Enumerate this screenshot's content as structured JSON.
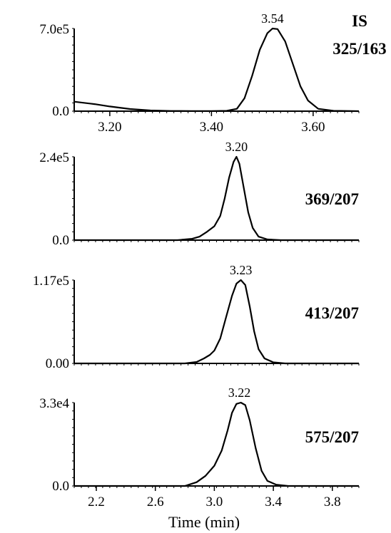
{
  "x_axis_label": "Time (min)",
  "chart_data": [
    {
      "type": "line",
      "trace_label": [
        "IS",
        "325/163"
      ],
      "y_ticks": [
        "7.0e5",
        "0.0"
      ],
      "ylim": [
        0,
        700000
      ],
      "xlim": [
        3.13,
        3.69
      ],
      "x_ticks": [
        3.2,
        3.4,
        3.6
      ],
      "x_tick_labels": [
        "3.20",
        "3.40",
        "3.60"
      ],
      "peak_label": "3.54",
      "peak_x": 3.52,
      "series": [
        {
          "x": [
            3.13,
            3.17,
            3.2,
            3.24,
            3.28,
            3.32,
            3.36,
            3.4,
            3.43,
            3.45,
            3.465,
            3.48,
            3.495,
            3.51,
            3.52,
            3.53,
            3.545,
            3.56,
            3.575,
            3.59,
            3.61,
            3.64,
            3.69
          ],
          "y": [
            80000,
            60000,
            40000,
            18000,
            6000,
            2000,
            1000,
            1000,
            3000,
            20000,
            110000,
            300000,
            520000,
            660000,
            700000,
            695000,
            590000,
            400000,
            210000,
            90000,
            20000,
            3000,
            0
          ]
        }
      ]
    },
    {
      "type": "line",
      "trace_label": [
        "369/207"
      ],
      "y_ticks": [
        "2.4e5",
        "0.0"
      ],
      "ylim": [
        0,
        240000
      ],
      "xlim": [
        2.05,
        3.98
      ],
      "x_ticks": [],
      "x_tick_labels": [],
      "peak_label": "3.20",
      "peak_x": 3.15,
      "series": [
        {
          "x": [
            2.05,
            2.75,
            2.85,
            2.9,
            2.95,
            3.0,
            3.04,
            3.07,
            3.1,
            3.13,
            3.15,
            3.17,
            3.2,
            3.23,
            3.26,
            3.3,
            3.36,
            3.45,
            3.98
          ],
          "y": [
            0,
            0,
            4000,
            10000,
            24000,
            40000,
            70000,
            120000,
            180000,
            225000,
            240000,
            220000,
            150000,
            80000,
            35000,
            10000,
            2000,
            0,
            0
          ]
        }
      ]
    },
    {
      "type": "line",
      "trace_label": [
        "413/207"
      ],
      "y_ticks": [
        "1.17e5",
        "0.00"
      ],
      "ylim": [
        0,
        117000
      ],
      "xlim": [
        2.05,
        3.98
      ],
      "x_ticks": [],
      "x_tick_labels": [],
      "peak_label": "3.23",
      "peak_x": 3.18,
      "series": [
        {
          "x": [
            2.05,
            2.8,
            2.88,
            2.93,
            2.97,
            3.0,
            3.04,
            3.08,
            3.12,
            3.15,
            3.18,
            3.21,
            3.24,
            3.27,
            3.3,
            3.34,
            3.4,
            3.48,
            3.98
          ],
          "y": [
            0,
            0,
            2000,
            7000,
            12000,
            18000,
            35000,
            65000,
            95000,
            112000,
            117000,
            110000,
            80000,
            45000,
            20000,
            7000,
            1500,
            0,
            0
          ]
        }
      ]
    },
    {
      "type": "line",
      "trace_label": [
        "575/207"
      ],
      "y_ticks": [
        "3.3e4",
        "0.0"
      ],
      "ylim": [
        0,
        33000
      ],
      "xlim": [
        2.05,
        3.98
      ],
      "x_ticks": [
        2.2,
        2.6,
        3.0,
        3.4,
        3.8
      ],
      "x_tick_labels": [
        "2.2",
        "2.6",
        "3.0",
        "3.4",
        "3.8"
      ],
      "peak_label": "3.22",
      "peak_x": 3.17,
      "series": [
        {
          "x": [
            2.05,
            2.8,
            2.88,
            2.94,
            3.0,
            3.05,
            3.09,
            3.12,
            3.15,
            3.18,
            3.21,
            3.24,
            3.28,
            3.32,
            3.36,
            3.42,
            3.5,
            3.98
          ],
          "y": [
            0,
            0,
            1500,
            4000,
            8000,
            14000,
            22000,
            29000,
            32500,
            33000,
            32000,
            26000,
            15000,
            6000,
            2000,
            500,
            0,
            0
          ]
        }
      ]
    }
  ]
}
